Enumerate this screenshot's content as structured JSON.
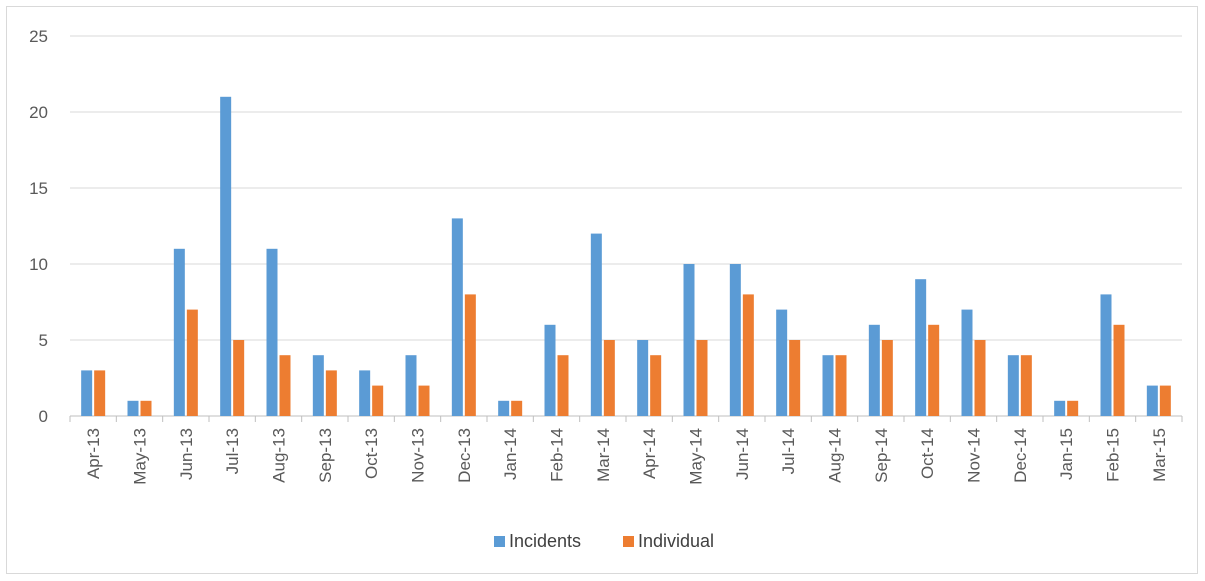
{
  "chart_data": {
    "type": "bar",
    "categories": [
      "Apr-13",
      "May-13",
      "Jun-13",
      "Jul-13",
      "Aug-13",
      "Sep-13",
      "Oct-13",
      "Nov-13",
      "Dec-13",
      "Jan-14",
      "Feb-14",
      "Mar-14",
      "Apr-14",
      "May-14",
      "Jun-14",
      "Jul-14",
      "Aug-14",
      "Sep-14",
      "Oct-14",
      "Nov-14",
      "Dec-14",
      "Jan-15",
      "Feb-15",
      "Mar-15"
    ],
    "series": [
      {
        "name": "Incidents",
        "color": "#5b9bd5",
        "values": [
          3,
          1,
          11,
          21,
          11,
          4,
          3,
          4,
          13,
          1,
          6,
          12,
          5,
          10,
          10,
          7,
          4,
          6,
          9,
          7,
          4,
          1,
          8,
          2
        ]
      },
      {
        "name": "Individual",
        "color": "#ed7d31",
        "values": [
          3,
          1,
          7,
          5,
          4,
          3,
          2,
          2,
          8,
          1,
          4,
          5,
          4,
          5,
          8,
          5,
          4,
          5,
          6,
          5,
          4,
          1,
          6,
          2
        ]
      }
    ],
    "yticks": [
      "0",
      "5",
      "10",
      "15",
      "20",
      "25"
    ],
    "ylim": [
      0,
      25
    ],
    "grid": true,
    "legend_position": "bottom"
  }
}
